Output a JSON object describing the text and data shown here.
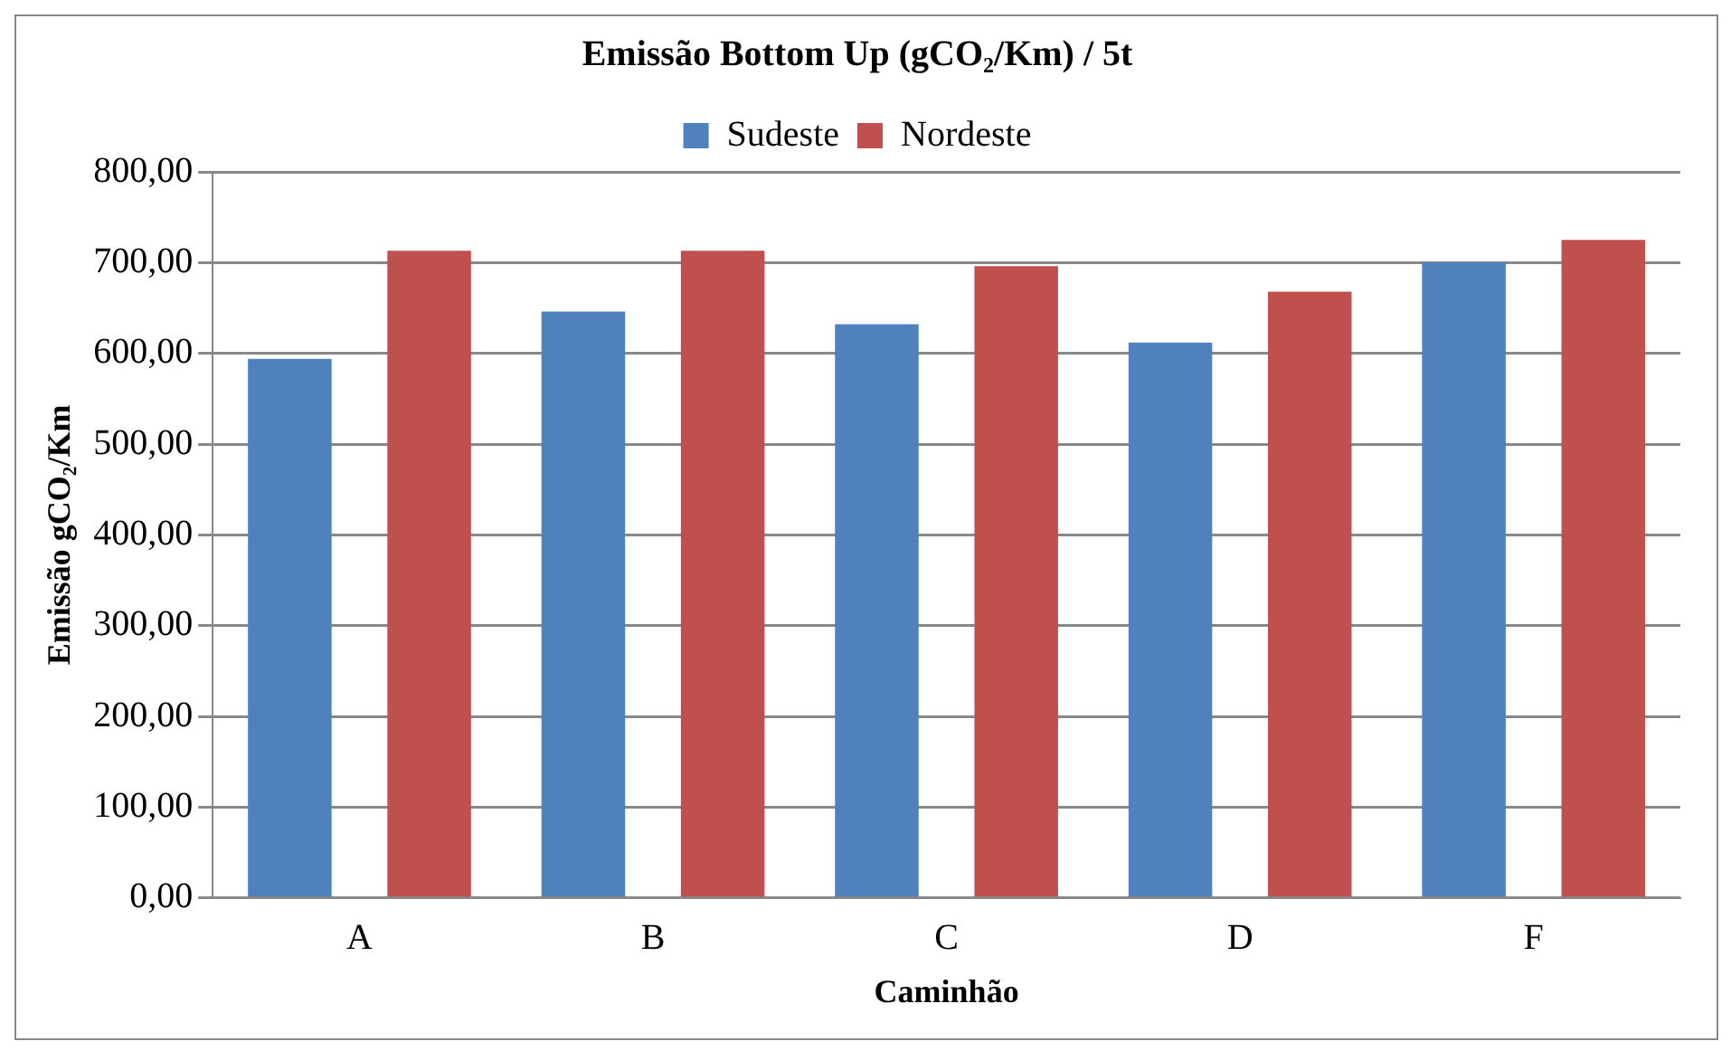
{
  "chart_data": {
    "type": "bar",
    "title": "Emissão Bottom Up (gCO₂/Km) / 5t",
    "xlabel": "Caminhão",
    "ylabel": "Emissão gCO₂/Km",
    "categories": [
      "A",
      "B",
      "C",
      "D",
      "F"
    ],
    "series": [
      {
        "name": "Sudeste",
        "color": "#4f81bd",
        "values": [
          594,
          646,
          632,
          612,
          700
        ]
      },
      {
        "name": "Nordeste",
        "color": "#c0504d",
        "values": [
          713,
          713,
          696,
          668,
          725
        ]
      }
    ],
    "ylim": [
      0,
      800
    ],
    "yticks": [
      {
        "value": 0,
        "label": "0,00"
      },
      {
        "value": 100,
        "label": "100,00"
      },
      {
        "value": 200,
        "label": "200,00"
      },
      {
        "value": 300,
        "label": "300,00"
      },
      {
        "value": 400,
        "label": "400,00"
      },
      {
        "value": 500,
        "label": "500,00"
      },
      {
        "value": 600,
        "label": "600,00"
      },
      {
        "value": 700,
        "label": "700,00"
      },
      {
        "value": 800,
        "label": "800,00"
      }
    ],
    "grid": "y",
    "legend": "top"
  }
}
